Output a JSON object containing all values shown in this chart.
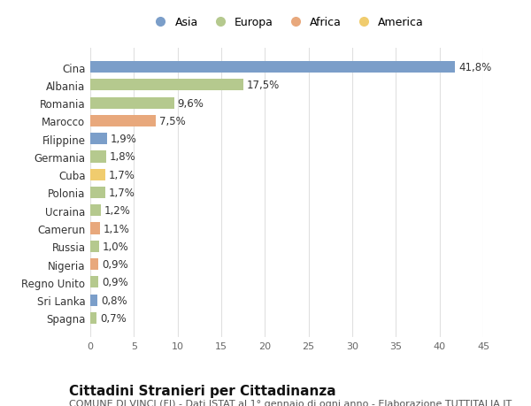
{
  "countries": [
    "Cina",
    "Albania",
    "Romania",
    "Marocco",
    "Filippine",
    "Germania",
    "Cuba",
    "Polonia",
    "Ucraina",
    "Camerun",
    "Russia",
    "Nigeria",
    "Regno Unito",
    "Sri Lanka",
    "Spagna"
  ],
  "values": [
    41.8,
    17.5,
    9.6,
    7.5,
    1.9,
    1.8,
    1.7,
    1.7,
    1.2,
    1.1,
    1.0,
    0.9,
    0.9,
    0.8,
    0.7
  ],
  "labels": [
    "41,8%",
    "17,5%",
    "9,6%",
    "7,5%",
    "1,9%",
    "1,8%",
    "1,7%",
    "1,7%",
    "1,2%",
    "1,1%",
    "1,0%",
    "0,9%",
    "0,9%",
    "0,8%",
    "0,7%"
  ],
  "continents": [
    "Asia",
    "Europa",
    "Europa",
    "Africa",
    "Asia",
    "Europa",
    "America",
    "Europa",
    "Europa",
    "Africa",
    "Europa",
    "Africa",
    "Europa",
    "Asia",
    "Europa"
  ],
  "continent_colors": {
    "Asia": "#7b9ec9",
    "Europa": "#b5c98e",
    "Africa": "#e8a87c",
    "America": "#f0cc6e"
  },
  "legend_order": [
    "Asia",
    "Europa",
    "Africa",
    "America"
  ],
  "title": "Cittadini Stranieri per Cittadinanza",
  "subtitle": "COMUNE DI VINCI (FI) - Dati ISTAT al 1° gennaio di ogni anno - Elaborazione TUTTITALIA.IT",
  "xlim": [
    0,
    45
  ],
  "xticks": [
    0,
    5,
    10,
    15,
    20,
    25,
    30,
    35,
    40,
    45
  ],
  "background_color": "#ffffff",
  "grid_color": "#e0e0e0",
  "title_fontsize": 11,
  "subtitle_fontsize": 8,
  "label_fontsize": 8.5,
  "ytick_fontsize": 8.5,
  "xtick_fontsize": 8
}
